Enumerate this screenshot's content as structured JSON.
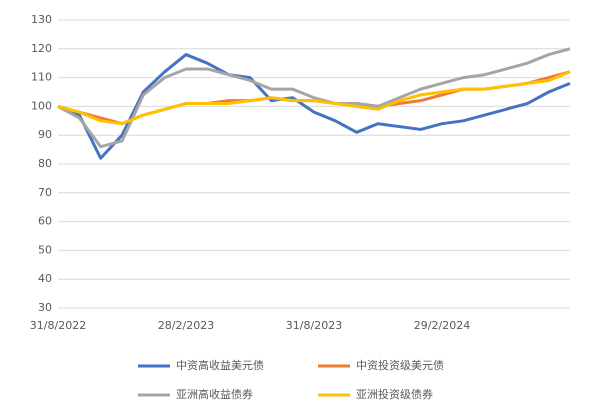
{
  "chart_data": {
    "type": "line",
    "x": [
      "31/8/2022",
      "30/9/2022",
      "31/10/2022",
      "30/11/2022",
      "31/12/2022",
      "31/1/2023",
      "28/2/2023",
      "31/3/2023",
      "30/4/2023",
      "31/5/2023",
      "30/6/2023",
      "31/7/2023",
      "31/8/2023",
      "30/9/2023",
      "31/10/2023",
      "30/11/2023",
      "31/12/2023",
      "31/1/2024",
      "29/2/2024",
      "31/3/2024",
      "30/4/2024",
      "31/5/2024",
      "30/6/2024",
      "31/7/2024",
      "31/8/2024"
    ],
    "xticks": [
      "31/8/2022",
      "28/2/2023",
      "31/8/2023",
      "29/2/2024"
    ],
    "ylim": [
      30,
      130
    ],
    "yticks": [
      30,
      40,
      50,
      60,
      70,
      80,
      90,
      100,
      110,
      120,
      130
    ],
    "grid": true,
    "series": [
      {
        "name": "中资高收益美元债",
        "color": "#4472c4",
        "values": [
          100,
          97,
          82,
          90,
          105,
          112,
          118,
          115,
          111,
          110,
          102,
          103,
          98,
          95,
          91,
          94,
          93,
          92,
          94,
          95,
          97,
          99,
          101,
          105,
          108
        ]
      },
      {
        "name": "中资投资级美元债",
        "color": "#ed7d31",
        "values": [
          100,
          98,
          96,
          94,
          97,
          99,
          101,
          101,
          102,
          102,
          103,
          102,
          102,
          101,
          101,
          100,
          101,
          102,
          104,
          106,
          106,
          107,
          108,
          110,
          112
        ]
      },
      {
        "name": "亚洲高收益债券",
        "color": "#a5a5a5",
        "values": [
          100,
          96,
          86,
          88,
          104,
          110,
          113,
          113,
          111,
          109,
          106,
          106,
          103,
          101,
          101,
          100,
          103,
          106,
          108,
          110,
          111,
          113,
          115,
          118,
          120
        ]
      },
      {
        "name": "亚洲投资级债券",
        "color": "#ffc000",
        "values": [
          100,
          98,
          95,
          94,
          97,
          99,
          101,
          101,
          101,
          102,
          103,
          102,
          102,
          101,
          100,
          99,
          102,
          104,
          105,
          106,
          106,
          107,
          108,
          109,
          112
        ]
      }
    ]
  }
}
